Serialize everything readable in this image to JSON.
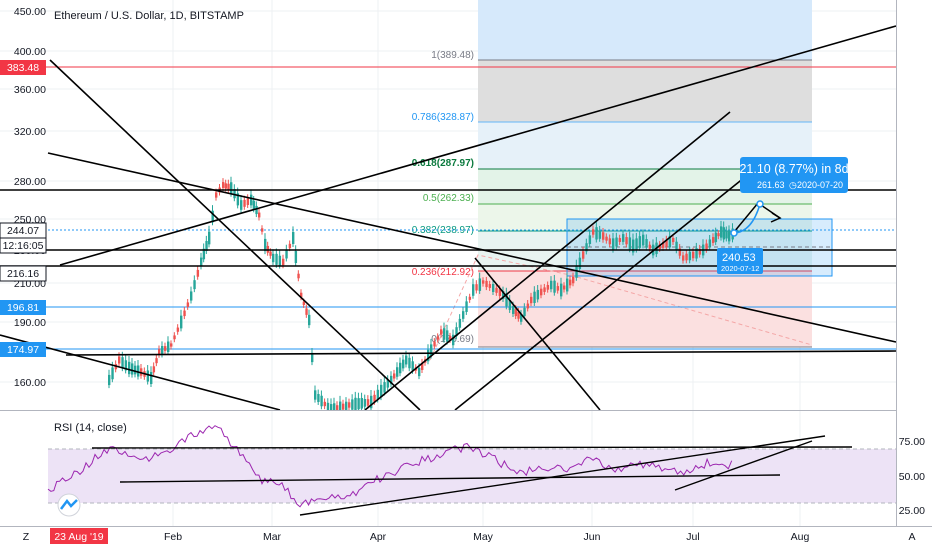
{
  "title": "Ethereum / U.S. Dollar, 1D, BITSTAMP",
  "rsi_title": "RSI (14, close)",
  "colors": {
    "up": "#26a69a",
    "down": "#ef5350",
    "rsi_line": "#9c27b0",
    "rsi_band": "#ede3f6",
    "fib_blue": "#d1e8fb",
    "fib_gray": "#dcdcdc",
    "fib_green": "#e0f2ea",
    "fib_red": "#fbdcdc",
    "pricebox_blue": "#2196f3",
    "pricebox_red": "#f23645",
    "axis_text": "#131722"
  },
  "price_axis": {
    "ticks": [
      "450.00",
      "400.00",
      "360.00",
      "320.00",
      "280.00",
      "250.00",
      "230.00",
      "210.00",
      "190.00",
      "160.00"
    ],
    "labels": {
      "red_line": "383.48",
      "current": "244.07",
      "countdown": "12:16:05",
      "line_a": "216.16",
      "line_b": "196.81",
      "line_c": "174.97"
    }
  },
  "rsi_axis": {
    "ticks": [
      "75.00",
      "50.00",
      "25.00"
    ]
  },
  "time_axis": {
    "labels": [
      "Feb",
      "Mar",
      "Apr",
      "May",
      "Jun",
      "Jul",
      "Aug"
    ],
    "start_label": "23 Aug '19"
  },
  "fib_levels": [
    {
      "label": "1(389.48)",
      "color": "#787b86"
    },
    {
      "label": "0.786(328.87)",
      "color": "#2196f3"
    },
    {
      "label": "0.618(287.97)",
      "color": "#0b7a3e"
    },
    {
      "label": "0.5(262.33)",
      "color": "#4caf50"
    },
    {
      "label": "0.382(238.97)",
      "color": "#089981"
    },
    {
      "label": "0.236(212.92)",
      "color": "#f23645"
    },
    {
      "label": "0(175.69)",
      "color": "#787b86"
    }
  ],
  "projection": {
    "headline": "21.10 (8.77%) in 8d",
    "subline": "261.63",
    "date": "2020-07-20"
  },
  "point_label": {
    "value": "240.53",
    "date": "2020-07-12"
  },
  "bottom_icons": {
    "left_button": "Z",
    "right_button": "A"
  },
  "logo": "tradingview-logo-icon"
}
